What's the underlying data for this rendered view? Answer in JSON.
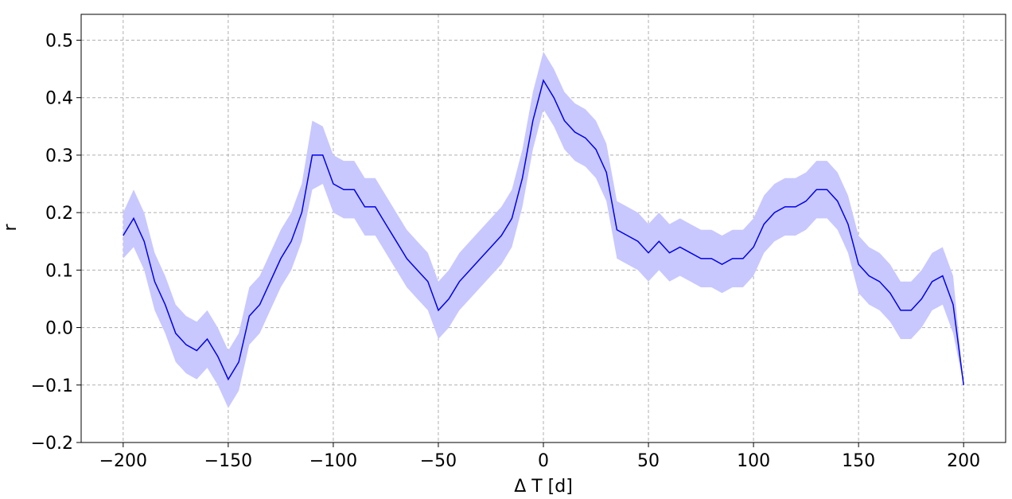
{
  "chart_data": {
    "type": "line",
    "title": "",
    "xlabel": "Δ T [d]",
    "ylabel": "r",
    "xlim": [
      -220,
      220
    ],
    "ylim": [
      -0.2,
      0.545
    ],
    "xticks": [
      -200,
      -150,
      -100,
      -50,
      0,
      50,
      100,
      150,
      200
    ],
    "xtick_labels": [
      "−200",
      "−150",
      "−100",
      "−50",
      "0",
      "50",
      "100",
      "150",
      "200"
    ],
    "yticks": [
      -0.2,
      -0.1,
      0.0,
      0.1,
      0.2,
      0.3,
      0.4,
      0.5
    ],
    "ytick_labels": [
      "−0.2",
      "−0.1",
      "0.0",
      "0.1",
      "0.2",
      "0.3",
      "0.4",
      "0.5"
    ],
    "grid": true,
    "legend": "none",
    "colors": {
      "line": "#0000ee",
      "band": "#c8c8ff",
      "grid": "#b0b0b0"
    },
    "series": [
      {
        "x": [
          -200,
          -195,
          -190,
          -185,
          -180,
          -175,
          -170,
          -165,
          -160,
          -155,
          -150,
          -145,
          -140,
          -135,
          -130,
          -125,
          -120,
          -115,
          -110,
          -105,
          -100,
          -95,
          -90,
          -85,
          -80,
          -75,
          -70,
          -65,
          -60,
          -55,
          -50,
          -45,
          -40,
          -35,
          -30,
          -25,
          -20,
          -15,
          -10,
          -5,
          0,
          5,
          10,
          15,
          20,
          25,
          30,
          35,
          40,
          45,
          50,
          55,
          60,
          65,
          70,
          75,
          80,
          85,
          90,
          95,
          100,
          105,
          110,
          115,
          120,
          125,
          130,
          135,
          140,
          145,
          150,
          155,
          160,
          165,
          170,
          175,
          180,
          185,
          190,
          195,
          200
        ],
        "y": [
          0.16,
          0.19,
          0.15,
          0.08,
          0.04,
          -0.01,
          -0.03,
          -0.04,
          -0.02,
          -0.05,
          -0.09,
          -0.06,
          0.02,
          0.04,
          0.08,
          0.12,
          0.15,
          0.2,
          0.3,
          0.3,
          0.25,
          0.24,
          0.24,
          0.21,
          0.21,
          0.18,
          0.15,
          0.12,
          0.1,
          0.08,
          0.03,
          0.05,
          0.08,
          0.1,
          0.12,
          0.14,
          0.16,
          0.19,
          0.26,
          0.36,
          0.43,
          0.4,
          0.36,
          0.34,
          0.33,
          0.31,
          0.27,
          0.17,
          0.16,
          0.15,
          0.13,
          0.15,
          0.13,
          0.14,
          0.13,
          0.12,
          0.12,
          0.11,
          0.12,
          0.12,
          0.14,
          0.18,
          0.2,
          0.21,
          0.21,
          0.22,
          0.24,
          0.24,
          0.22,
          0.18,
          0.11,
          0.09,
          0.08,
          0.06,
          0.03,
          0.03,
          0.05,
          0.08,
          0.09,
          0.04,
          -0.1
        ],
        "band": [
          0.04,
          0.05,
          0.05,
          0.05,
          0.05,
          0.05,
          0.05,
          0.05,
          0.05,
          0.05,
          0.05,
          0.05,
          0.05,
          0.05,
          0.05,
          0.05,
          0.05,
          0.05,
          0.06,
          0.05,
          0.05,
          0.05,
          0.05,
          0.05,
          0.05,
          0.05,
          0.05,
          0.05,
          0.05,
          0.05,
          0.05,
          0.05,
          0.05,
          0.05,
          0.05,
          0.05,
          0.05,
          0.05,
          0.05,
          0.05,
          0.05,
          0.05,
          0.05,
          0.05,
          0.05,
          0.05,
          0.05,
          0.05,
          0.05,
          0.05,
          0.05,
          0.05,
          0.05,
          0.05,
          0.05,
          0.05,
          0.05,
          0.05,
          0.05,
          0.05,
          0.05,
          0.05,
          0.05,
          0.05,
          0.05,
          0.05,
          0.05,
          0.05,
          0.05,
          0.05,
          0.05,
          0.05,
          0.05,
          0.05,
          0.05,
          0.05,
          0.05,
          0.05,
          0.05,
          0.05,
          0.0
        ]
      }
    ]
  }
}
